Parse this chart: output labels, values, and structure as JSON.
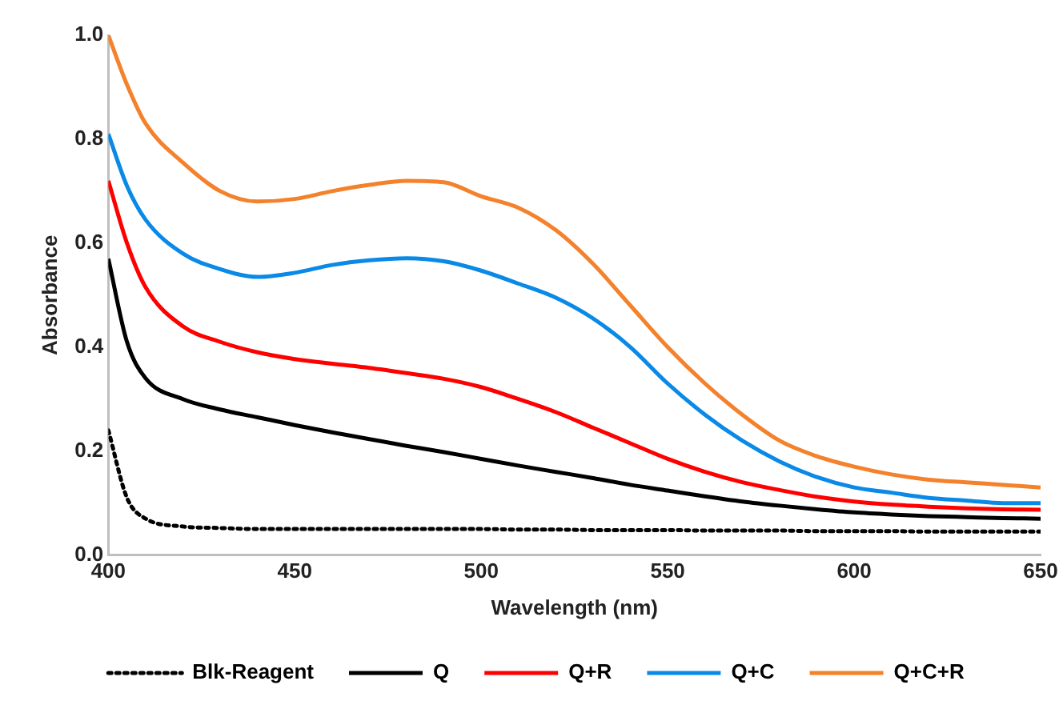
{
  "chart_data": {
    "type": "line",
    "xlabel": "Wavelength (nm)",
    "ylabel": "Absorbance",
    "x": [
      400,
      405,
      410,
      420,
      430,
      440,
      450,
      460,
      470,
      480,
      490,
      500,
      510,
      520,
      530,
      540,
      550,
      560,
      570,
      580,
      590,
      600,
      610,
      620,
      630,
      640,
      650
    ],
    "xlim": [
      400,
      650
    ],
    "xticks": [
      400,
      450,
      500,
      550,
      600,
      650
    ],
    "ylim": [
      0,
      1
    ],
    "yticks": [
      {
        "value": 0,
        "label": "0.0"
      },
      {
        "value": 0.2,
        "label": "0.2"
      },
      {
        "value": 0.4,
        "label": "0.4"
      },
      {
        "value": 0.6,
        "label": "0.6"
      },
      {
        "value": 0.8,
        "label": "0.8"
      },
      {
        "value": 1,
        "label": "1.0"
      }
    ],
    "grid": false,
    "legend": "bottom",
    "marker": "none",
    "series": [
      {
        "name": "Blk-Reagent",
        "color": "#000000",
        "line_style": "dotted",
        "values": [
          0.24,
          0.11,
          0.07,
          0.055,
          0.052,
          0.05,
          0.05,
          0.05,
          0.05,
          0.05,
          0.05,
          0.05,
          0.049,
          0.049,
          0.048,
          0.048,
          0.048,
          0.047,
          0.047,
          0.047,
          0.046,
          0.046,
          0.046,
          0.045,
          0.045,
          0.045,
          0.045
        ]
      },
      {
        "name": "Q",
        "color": "#000000",
        "line_style": "solid",
        "values": [
          0.57,
          0.41,
          0.34,
          0.3,
          0.28,
          0.265,
          0.25,
          0.236,
          0.223,
          0.21,
          0.198,
          0.185,
          0.172,
          0.16,
          0.148,
          0.135,
          0.124,
          0.113,
          0.103,
          0.095,
          0.088,
          0.082,
          0.078,
          0.075,
          0.073,
          0.071,
          0.07
        ]
      },
      {
        "name": "Q+R",
        "color": "#ff0000",
        "line_style": "solid",
        "values": [
          0.72,
          0.6,
          0.515,
          0.44,
          0.41,
          0.39,
          0.377,
          0.368,
          0.36,
          0.35,
          0.339,
          0.323,
          0.3,
          0.275,
          0.245,
          0.215,
          0.185,
          0.16,
          0.14,
          0.125,
          0.112,
          0.103,
          0.097,
          0.093,
          0.09,
          0.088,
          0.087
        ]
      },
      {
        "name": "Q+C",
        "color": "#0a8ae6",
        "line_style": "solid",
        "values": [
          0.81,
          0.71,
          0.645,
          0.58,
          0.55,
          0.535,
          0.543,
          0.558,
          0.567,
          0.571,
          0.565,
          0.547,
          0.522,
          0.495,
          0.455,
          0.4,
          0.33,
          0.27,
          0.22,
          0.18,
          0.15,
          0.13,
          0.12,
          0.11,
          0.105,
          0.1,
          0.1
        ]
      },
      {
        "name": "Q+C+R",
        "color": "#f4812b",
        "line_style": "solid",
        "values": [
          1.0,
          0.905,
          0.83,
          0.755,
          0.7,
          0.68,
          0.685,
          0.7,
          0.712,
          0.72,
          0.717,
          0.69,
          0.668,
          0.625,
          0.56,
          0.48,
          0.4,
          0.33,
          0.27,
          0.22,
          0.19,
          0.17,
          0.155,
          0.145,
          0.14,
          0.135,
          0.13
        ]
      }
    ]
  }
}
